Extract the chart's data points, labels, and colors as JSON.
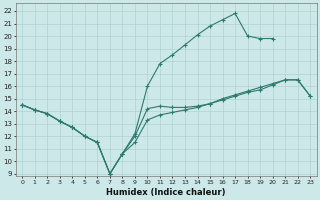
{
  "xlabel": "Humidex (Indice chaleur)",
  "background_color": "#cde8e8",
  "grid_color": "#aacccc",
  "line_color": "#2d7a6e",
  "xlim": [
    -0.5,
    23.5
  ],
  "ylim": [
    8.8,
    22.6
  ],
  "yticks": [
    9,
    10,
    11,
    12,
    13,
    14,
    15,
    16,
    17,
    18,
    19,
    20,
    21,
    22
  ],
  "xticks": [
    0,
    1,
    2,
    3,
    4,
    5,
    6,
    7,
    8,
    9,
    10,
    11,
    12,
    13,
    14,
    15,
    16,
    17,
    18,
    19,
    20,
    21,
    22,
    23
  ],
  "line_valley_x": [
    0,
    1,
    2,
    3,
    4,
    5,
    6,
    7,
    8,
    9,
    10,
    11,
    12,
    13,
    14,
    15,
    16,
    17,
    18,
    19,
    20,
    21,
    22,
    23
  ],
  "line_valley_y": [
    14.5,
    14.1,
    13.8,
    13.2,
    12.7,
    12.0,
    11.5,
    9.0,
    10.6,
    12.0,
    14.2,
    14.4,
    14.3,
    14.3,
    14.4,
    14.6,
    14.9,
    15.2,
    15.5,
    15.7,
    16.1,
    16.5,
    16.5,
    15.2
  ],
  "line_peak_x": [
    0,
    1,
    2,
    3,
    4,
    5,
    6,
    7,
    8,
    9,
    10,
    11,
    12,
    13,
    14,
    15,
    16,
    17,
    18,
    19,
    20
  ],
  "line_peak_y": [
    14.5,
    14.1,
    13.8,
    13.2,
    12.7,
    12.0,
    11.5,
    9.0,
    10.6,
    12.2,
    16.0,
    17.8,
    18.5,
    19.3,
    20.1,
    20.8,
    21.3,
    21.8,
    20.0,
    19.8,
    19.8
  ],
  "line_flat_x": [
    0,
    1,
    2,
    3,
    4,
    5,
    6,
    7,
    8,
    9,
    10,
    11,
    12,
    13,
    14,
    15,
    16,
    17,
    18,
    19,
    20,
    21,
    22,
    23
  ],
  "line_flat_y": [
    14.5,
    14.1,
    13.8,
    13.2,
    12.7,
    12.0,
    11.5,
    9.0,
    10.6,
    11.5,
    13.3,
    13.7,
    13.9,
    14.1,
    14.3,
    14.6,
    15.0,
    15.3,
    15.6,
    15.9,
    16.2,
    16.5,
    16.5,
    15.2
  ]
}
